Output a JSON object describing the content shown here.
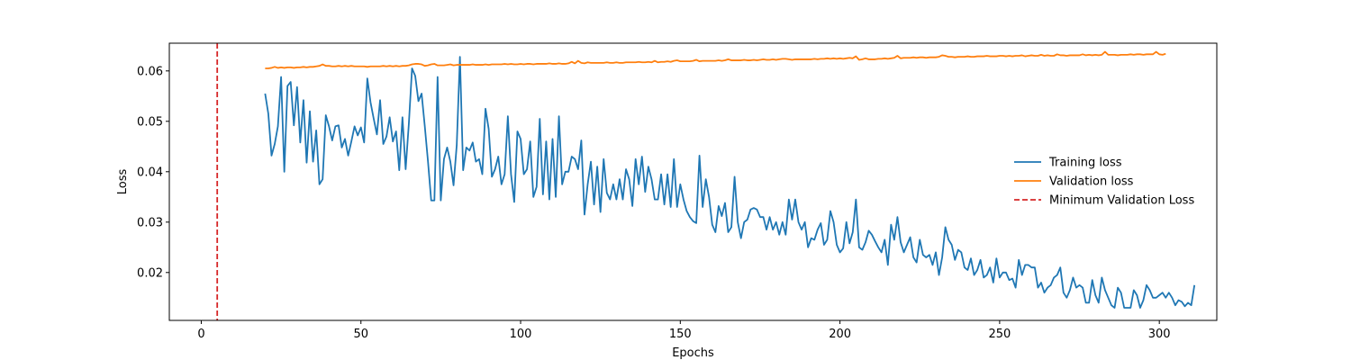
{
  "chart_data": {
    "type": "line",
    "title": "",
    "xlabel": "Epochs",
    "ylabel": "Loss",
    "xlim": [
      -10,
      318
    ],
    "ylim": [
      0.0105,
      0.0655
    ],
    "xticks": [
      0,
      50,
      100,
      150,
      200,
      250,
      300
    ],
    "yticks": [
      0.02,
      0.03,
      0.04,
      0.05,
      0.06
    ],
    "grid": false,
    "legend_position": "center-right",
    "vline": {
      "name": "Minimum Validation Loss",
      "x": 5,
      "color": "#d62728",
      "style": "dashed"
    },
    "series": [
      {
        "name": "Training loss",
        "color": "#1f77b4",
        "x_start": 20,
        "values": [
          0.0555,
          0.0515,
          0.0432,
          0.0455,
          0.049,
          0.0588,
          0.04,
          0.057,
          0.0578,
          0.0492,
          0.0568,
          0.0458,
          0.0542,
          0.0418,
          0.052,
          0.042,
          0.0482,
          0.0375,
          0.0385,
          0.0512,
          0.049,
          0.0462,
          0.049,
          0.0492,
          0.0448,
          0.0465,
          0.0432,
          0.046,
          0.049,
          0.0472,
          0.0488,
          0.0458,
          0.0585,
          0.0538,
          0.0505,
          0.0474,
          0.0542,
          0.0455,
          0.047,
          0.0508,
          0.046,
          0.048,
          0.0403,
          0.0508,
          0.0405,
          0.0495,
          0.0605,
          0.059,
          0.054,
          0.0555,
          0.049,
          0.042,
          0.0343,
          0.0343,
          0.0588,
          0.0343,
          0.0425,
          0.0448,
          0.042,
          0.0373,
          0.0453,
          0.0628,
          0.0403,
          0.0448,
          0.0442,
          0.0458,
          0.042,
          0.0425,
          0.0395,
          0.0525,
          0.0485,
          0.039,
          0.0405,
          0.043,
          0.0375,
          0.0395,
          0.051,
          0.0395,
          0.034,
          0.048,
          0.0465,
          0.0395,
          0.0405,
          0.046,
          0.035,
          0.037,
          0.0505,
          0.0355,
          0.046,
          0.0345,
          0.0465,
          0.035,
          0.051,
          0.0375,
          0.04,
          0.04,
          0.043,
          0.0425,
          0.0405,
          0.0462,
          0.0315,
          0.0375,
          0.042,
          0.0335,
          0.041,
          0.032,
          0.0425,
          0.0358,
          0.0345,
          0.0375,
          0.0345,
          0.0385,
          0.0345,
          0.0405,
          0.0385,
          0.0332,
          0.0425,
          0.0375,
          0.043,
          0.036,
          0.041,
          0.0385,
          0.0345,
          0.0345,
          0.0395,
          0.0335,
          0.0395,
          0.033,
          0.0425,
          0.033,
          0.0375,
          0.0345,
          0.0322,
          0.031,
          0.0302,
          0.0298,
          0.0432,
          0.033,
          0.0385,
          0.035,
          0.0295,
          0.028,
          0.0332,
          0.0312,
          0.0338,
          0.028,
          0.029,
          0.039,
          0.03,
          0.0268,
          0.03,
          0.0305,
          0.0325,
          0.0328,
          0.0325,
          0.031,
          0.031,
          0.0285,
          0.031,
          0.0285,
          0.03,
          0.0275,
          0.03,
          0.0275,
          0.0345,
          0.0305,
          0.0345,
          0.03,
          0.0285,
          0.03,
          0.025,
          0.0268,
          0.0265,
          0.0285,
          0.0298,
          0.0255,
          0.0265,
          0.0322,
          0.03,
          0.0255,
          0.024,
          0.0248,
          0.03,
          0.0258,
          0.028,
          0.0345,
          0.025,
          0.0245,
          0.026,
          0.0283,
          0.0275,
          0.0262,
          0.025,
          0.024,
          0.0265,
          0.0215,
          0.0295,
          0.0265,
          0.031,
          0.026,
          0.024,
          0.0255,
          0.027,
          0.023,
          0.022,
          0.0265,
          0.0235,
          0.023,
          0.0235,
          0.0215,
          0.024,
          0.0195,
          0.023,
          0.029,
          0.0265,
          0.0255,
          0.0225,
          0.0245,
          0.024,
          0.021,
          0.0205,
          0.0228,
          0.0195,
          0.0205,
          0.0225,
          0.019,
          0.0195,
          0.021,
          0.018,
          0.0228,
          0.019,
          0.02,
          0.02,
          0.0185,
          0.0188,
          0.017,
          0.0225,
          0.0195,
          0.0215,
          0.0215,
          0.021,
          0.021,
          0.017,
          0.018,
          0.016,
          0.017,
          0.0175,
          0.019,
          0.0195,
          0.021,
          0.016,
          0.015,
          0.0165,
          0.019,
          0.017,
          0.0175,
          0.017,
          0.014,
          0.014,
          0.0185,
          0.0155,
          0.014,
          0.019,
          0.0165,
          0.015,
          0.0135,
          0.013,
          0.017,
          0.016,
          0.013,
          0.013,
          0.013,
          0.0165,
          0.0155,
          0.013,
          0.0145,
          0.0175,
          0.0165,
          0.015,
          0.015,
          0.0155,
          0.016,
          0.015,
          0.016,
          0.015,
          0.0135,
          0.0145,
          0.0142,
          0.0133,
          0.014,
          0.0135,
          0.0175
        ]
      },
      {
        "name": "Validation loss",
        "color": "#ff7f0e",
        "x_start": 20,
        "values": [
          0.0605,
          0.0605,
          0.0606,
          0.0608,
          0.0606,
          0.0607,
          0.0606,
          0.0607,
          0.0607,
          0.0606,
          0.0607,
          0.0607,
          0.0608,
          0.0607,
          0.0608,
          0.0608,
          0.0609,
          0.061,
          0.0613,
          0.061,
          0.061,
          0.0609,
          0.0609,
          0.061,
          0.0609,
          0.061,
          0.0609,
          0.061,
          0.0609,
          0.0609,
          0.0609,
          0.0609,
          0.0608,
          0.0609,
          0.0609,
          0.0609,
          0.0609,
          0.061,
          0.0609,
          0.061,
          0.0609,
          0.061,
          0.0609,
          0.061,
          0.061,
          0.0611,
          0.0613,
          0.0614,
          0.0614,
          0.0613,
          0.061,
          0.0611,
          0.0613,
          0.0614,
          0.0611,
          0.0611,
          0.0611,
          0.0612,
          0.0613,
          0.0611,
          0.0612,
          0.0612,
          0.0612,
          0.0612,
          0.0612,
          0.0613,
          0.0612,
          0.0612,
          0.0612,
          0.0613,
          0.0612,
          0.0613,
          0.0613,
          0.0613,
          0.0613,
          0.0614,
          0.0613,
          0.0614,
          0.0613,
          0.0613,
          0.0614,
          0.0613,
          0.0614,
          0.0614,
          0.0613,
          0.0614,
          0.0614,
          0.0614,
          0.0614,
          0.0615,
          0.0614,
          0.0614,
          0.0615,
          0.0614,
          0.0614,
          0.0615,
          0.0618,
          0.0615,
          0.062,
          0.0616,
          0.0615,
          0.0617,
          0.0616,
          0.0616,
          0.0616,
          0.0616,
          0.0616,
          0.0617,
          0.0616,
          0.0616,
          0.0617,
          0.0616,
          0.0616,
          0.0617,
          0.0617,
          0.0617,
          0.0617,
          0.0618,
          0.0617,
          0.0617,
          0.0618,
          0.0617,
          0.062,
          0.0617,
          0.0618,
          0.0618,
          0.0619,
          0.0618,
          0.062,
          0.0621,
          0.0619,
          0.0619,
          0.0619,
          0.0619,
          0.062,
          0.0622,
          0.0619,
          0.062,
          0.062,
          0.062,
          0.062,
          0.062,
          0.0621,
          0.062,
          0.0621,
          0.0623,
          0.0621,
          0.0621,
          0.0621,
          0.0621,
          0.0622,
          0.0621,
          0.0621,
          0.0622,
          0.0621,
          0.0622,
          0.0623,
          0.0622,
          0.0622,
          0.0623,
          0.0622,
          0.0623,
          0.0624,
          0.0624,
          0.0623,
          0.0622,
          0.0623,
          0.0623,
          0.0623,
          0.0623,
          0.0623,
          0.0623,
          0.0624,
          0.0623,
          0.0624,
          0.0624,
          0.0625,
          0.0624,
          0.0625,
          0.0624,
          0.0625,
          0.0624,
          0.0625,
          0.0626,
          0.0625,
          0.0629,
          0.0622,
          0.0623,
          0.0625,
          0.0623,
          0.0623,
          0.0623,
          0.0624,
          0.0624,
          0.0625,
          0.0624,
          0.0625,
          0.0626,
          0.063,
          0.0625,
          0.0626,
          0.0626,
          0.0626,
          0.0627,
          0.0626,
          0.0627,
          0.0627,
          0.0626,
          0.0627,
          0.0627,
          0.0627,
          0.0628,
          0.0631,
          0.063,
          0.0628,
          0.0628,
          0.0627,
          0.0628,
          0.0628,
          0.0628,
          0.0629,
          0.0628,
          0.0628,
          0.0629,
          0.0629,
          0.0629,
          0.063,
          0.0629,
          0.0629,
          0.0629,
          0.063,
          0.063,
          0.0629,
          0.063,
          0.0629,
          0.063,
          0.063,
          0.0631,
          0.0629,
          0.063,
          0.0631,
          0.063,
          0.063,
          0.0632,
          0.063,
          0.0631,
          0.063,
          0.063,
          0.0633,
          0.0631,
          0.0631,
          0.063,
          0.0631,
          0.0631,
          0.0631,
          0.0631,
          0.0633,
          0.0631,
          0.0632,
          0.0631,
          0.0632,
          0.0631,
          0.0632,
          0.0638,
          0.0632,
          0.0632,
          0.0632,
          0.0631,
          0.0632,
          0.0632,
          0.0632,
          0.0633,
          0.0632,
          0.0633,
          0.0633,
          0.0632,
          0.0633,
          0.0633,
          0.0633,
          0.0638,
          0.0633,
          0.0632,
          0.0634
        ]
      }
    ]
  }
}
